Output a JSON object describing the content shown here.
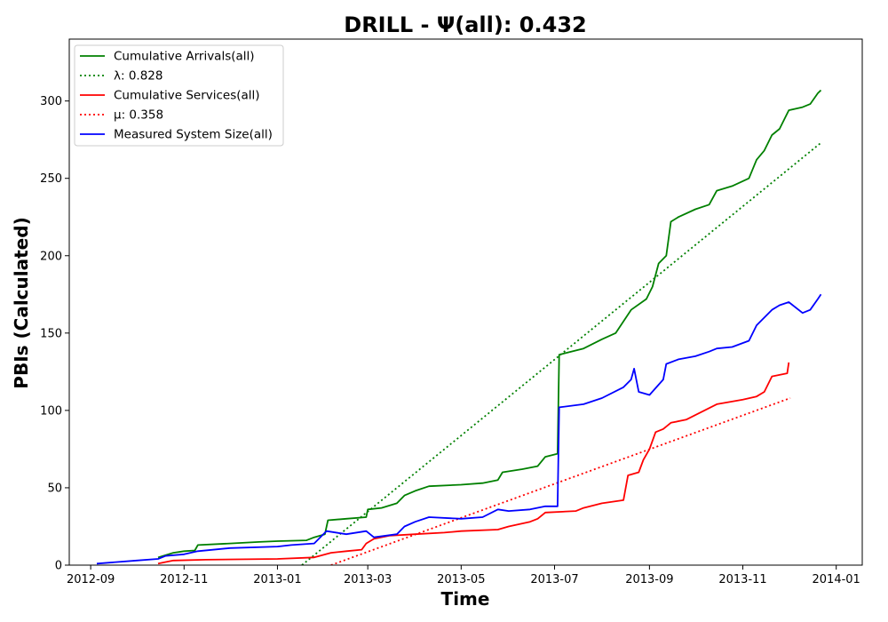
{
  "chart_data": {
    "type": "line",
    "title": "DRILL -  Ψ(all): 0.432",
    "xlabel": "Time",
    "ylabel": "PBIs (Calculated)",
    "xlim": [
      "2012-08-18",
      "2014-01-18"
    ],
    "ylim": [
      0,
      340
    ],
    "x_ticks": [
      "2012-09",
      "2012-11",
      "2013-01",
      "2013-03",
      "2013-05",
      "2013-07",
      "2013-09",
      "2013-11",
      "2014-01"
    ],
    "y_ticks": [
      0,
      50,
      100,
      150,
      200,
      250,
      300
    ],
    "grid": false,
    "legend_position": "top-left",
    "series": [
      {
        "name": "Cumulative Arrivals(all)",
        "color": "#008000",
        "style": "solid",
        "points": [
          [
            "2012-10-15",
            5
          ],
          [
            "2012-10-25",
            8
          ],
          [
            "2012-11-01",
            9
          ],
          [
            "2012-11-08",
            9.5
          ],
          [
            "2012-11-10",
            13
          ],
          [
            "2012-12-01",
            14
          ],
          [
            "2012-12-20",
            15
          ],
          [
            "2013-01-01",
            15.5
          ],
          [
            "2013-01-20",
            16
          ],
          [
            "2013-01-25",
            18
          ],
          [
            "2013-02-01",
            20
          ],
          [
            "2013-02-03",
            29
          ],
          [
            "2013-02-15",
            30
          ],
          [
            "2013-02-28",
            31
          ],
          [
            "2013-03-01",
            36
          ],
          [
            "2013-03-10",
            37
          ],
          [
            "2013-03-20",
            40
          ],
          [
            "2013-03-25",
            45
          ],
          [
            "2013-04-01",
            48
          ],
          [
            "2013-04-10",
            51
          ],
          [
            "2013-05-01",
            52
          ],
          [
            "2013-05-15",
            53
          ],
          [
            "2013-05-25",
            55
          ],
          [
            "2013-05-28",
            60
          ],
          [
            "2013-06-10",
            62
          ],
          [
            "2013-06-20",
            64
          ],
          [
            "2013-06-25",
            70
          ],
          [
            "2013-07-03",
            72
          ],
          [
            "2013-07-04",
            136
          ],
          [
            "2013-07-20",
            140
          ],
          [
            "2013-08-01",
            146
          ],
          [
            "2013-08-10",
            150
          ],
          [
            "2013-08-20",
            165
          ],
          [
            "2013-08-30",
            172
          ],
          [
            "2013-09-03",
            180
          ],
          [
            "2013-09-07",
            195
          ],
          [
            "2013-09-12",
            200
          ],
          [
            "2013-09-15",
            222
          ],
          [
            "2013-09-20",
            225
          ],
          [
            "2013-10-01",
            230
          ],
          [
            "2013-10-10",
            233
          ],
          [
            "2013-10-15",
            242
          ],
          [
            "2013-10-25",
            245
          ],
          [
            "2013-11-05",
            250
          ],
          [
            "2013-11-10",
            262
          ],
          [
            "2013-11-15",
            268
          ],
          [
            "2013-11-20",
            278
          ],
          [
            "2013-11-25",
            282
          ],
          [
            "2013-12-01",
            294
          ],
          [
            "2013-12-10",
            296
          ],
          [
            "2013-12-15",
            298
          ],
          [
            "2013-12-20",
            305
          ],
          [
            "2013-12-22",
            307
          ]
        ]
      },
      {
        "name": "λ: 0.828",
        "color": "#008000",
        "style": "dotted",
        "points": [
          [
            "2013-01-17",
            0
          ],
          [
            "2013-12-22",
            273
          ]
        ]
      },
      {
        "name": "Cumulative Services(all)",
        "color": "#ff0000",
        "style": "solid",
        "points": [
          [
            "2012-10-15",
            1
          ],
          [
            "2012-10-25",
            3
          ],
          [
            "2012-11-15",
            3.5
          ],
          [
            "2013-01-01",
            4
          ],
          [
            "2013-01-25",
            5
          ],
          [
            "2013-02-05",
            8
          ],
          [
            "2013-02-15",
            9
          ],
          [
            "2013-02-25",
            10
          ],
          [
            "2013-02-28",
            14
          ],
          [
            "2013-03-05",
            17
          ],
          [
            "2013-03-15",
            19
          ],
          [
            "2013-04-01",
            20
          ],
          [
            "2013-04-20",
            21
          ],
          [
            "2013-05-01",
            22
          ],
          [
            "2013-05-25",
            23
          ],
          [
            "2013-06-01",
            25
          ],
          [
            "2013-06-15",
            28
          ],
          [
            "2013-06-20",
            30
          ],
          [
            "2013-06-25",
            34
          ],
          [
            "2013-07-15",
            35
          ],
          [
            "2013-07-20",
            37
          ],
          [
            "2013-08-01",
            40
          ],
          [
            "2013-08-15",
            42
          ],
          [
            "2013-08-18",
            58
          ],
          [
            "2013-08-25",
            60
          ],
          [
            "2013-08-28",
            68
          ],
          [
            "2013-09-01",
            75
          ],
          [
            "2013-09-05",
            86
          ],
          [
            "2013-09-10",
            88
          ],
          [
            "2013-09-15",
            92
          ],
          [
            "2013-09-25",
            94
          ],
          [
            "2013-10-01",
            97
          ],
          [
            "2013-10-15",
            104
          ],
          [
            "2013-11-01",
            107
          ],
          [
            "2013-11-10",
            109
          ],
          [
            "2013-11-15",
            112
          ],
          [
            "2013-11-20",
            122
          ],
          [
            "2013-11-30",
            124
          ],
          [
            "2013-12-01",
            131
          ]
        ]
      },
      {
        "name": "μ: 0.358",
        "color": "#ff0000",
        "style": "dotted",
        "points": [
          [
            "2013-02-05",
            0
          ],
          [
            "2013-12-02",
            108
          ]
        ]
      },
      {
        "name": "Measured System Size(all)",
        "color": "#0000ff",
        "style": "solid",
        "points": [
          [
            "2012-09-05",
            1
          ],
          [
            "2012-10-01",
            3
          ],
          [
            "2012-10-15",
            4
          ],
          [
            "2012-10-20",
            6
          ],
          [
            "2012-11-01",
            7
          ],
          [
            "2012-11-10",
            9
          ],
          [
            "2012-12-01",
            11
          ],
          [
            "2013-01-01",
            12
          ],
          [
            "2013-01-10",
            13
          ],
          [
            "2013-01-25",
            14
          ],
          [
            "2013-02-02",
            22
          ],
          [
            "2013-02-15",
            20
          ],
          [
            "2013-02-28",
            22
          ],
          [
            "2013-03-05",
            18
          ],
          [
            "2013-03-20",
            20
          ],
          [
            "2013-03-25",
            25
          ],
          [
            "2013-04-01",
            28
          ],
          [
            "2013-04-10",
            31
          ],
          [
            "2013-05-01",
            30
          ],
          [
            "2013-05-15",
            31
          ],
          [
            "2013-05-25",
            36
          ],
          [
            "2013-06-01",
            35
          ],
          [
            "2013-06-15",
            36
          ],
          [
            "2013-06-25",
            38
          ],
          [
            "2013-07-03",
            38
          ],
          [
            "2013-07-04",
            102
          ],
          [
            "2013-07-20",
            104
          ],
          [
            "2013-08-01",
            108
          ],
          [
            "2013-08-15",
            115
          ],
          [
            "2013-08-20",
            120
          ],
          [
            "2013-08-22",
            127
          ],
          [
            "2013-08-25",
            112
          ],
          [
            "2013-09-01",
            110
          ],
          [
            "2013-09-10",
            120
          ],
          [
            "2013-09-12",
            130
          ],
          [
            "2013-09-20",
            133
          ],
          [
            "2013-10-01",
            135
          ],
          [
            "2013-10-10",
            138
          ],
          [
            "2013-10-15",
            140
          ],
          [
            "2013-10-25",
            141
          ],
          [
            "2013-11-05",
            145
          ],
          [
            "2013-11-10",
            155
          ],
          [
            "2013-11-20",
            165
          ],
          [
            "2013-11-25",
            168
          ],
          [
            "2013-12-01",
            170
          ],
          [
            "2013-12-10",
            163
          ],
          [
            "2013-12-15",
            165
          ],
          [
            "2013-12-20",
            172
          ],
          [
            "2013-12-22",
            175
          ]
        ]
      }
    ]
  }
}
